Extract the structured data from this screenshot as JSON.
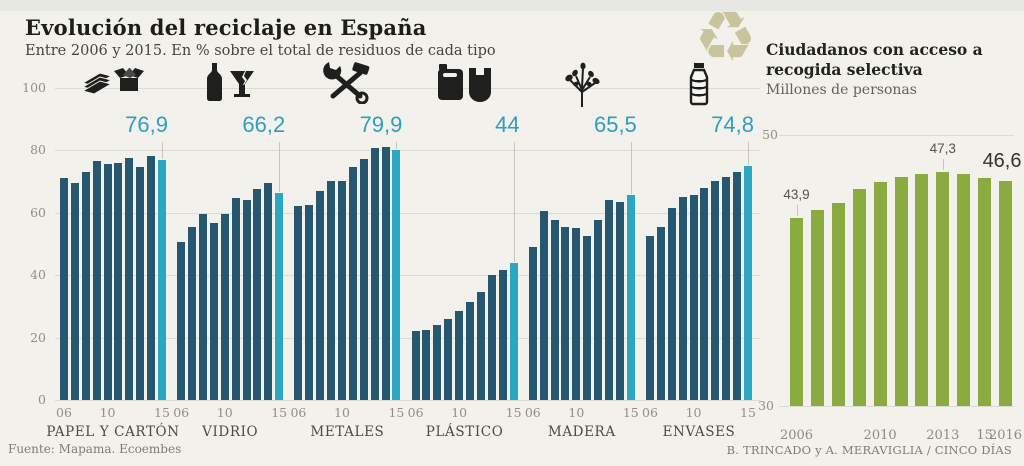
{
  "header": {
    "title": "Evolución del reciclaje en España",
    "subtitle": "Entre 2006 y 2015. En % sobre el total de residuos de cada tipo"
  },
  "right_header": {
    "title": "Ciudadanos con acceso a recogida selectiva",
    "subtitle": "Millones de personas"
  },
  "icons": {
    "recycle_glyph": "♻"
  },
  "palette": {
    "background": "#f2f1ec",
    "bar_blue": "#27566f",
    "bar_teal": "#2ca7c2",
    "label_teal": "#2f9fc0",
    "bar_green": "#8aab40",
    "gridline": "#dbdad3"
  },
  "footer": {
    "source": "Fuente: Mapama. Ecoembes",
    "credit": "B. TRINCADO y A. MERAVIGLIA / CINCO DÍAS"
  },
  "chart_data": [
    {
      "id": "recycling-by-material",
      "type": "bar",
      "title": "Evolución del reciclaje en España",
      "subtitle": "Entre 2006 y 2015. En % sobre el total de residuos de cada tipo",
      "years": [
        "06",
        "07",
        "08",
        "09",
        "10",
        "11",
        "12",
        "13",
        "14",
        "15"
      ],
      "ylim": [
        0,
        100
      ],
      "yticks": [
        0,
        20,
        40,
        60,
        80,
        100
      ],
      "grid": true,
      "highlight_last_bar": true,
      "x_tick_indices": [
        0,
        4,
        9
      ],
      "x_tick_texts": [
        "06",
        "10",
        "15"
      ],
      "groups": [
        {
          "name": "PAPEL Y CARTÓN",
          "icon": "paper-and-box-icon",
          "final_label": "76,9",
          "values": [
            71,
            69.5,
            73,
            76.5,
            75.5,
            76,
            77.5,
            74.5,
            78,
            76.9
          ]
        },
        {
          "name": "VIDRIO",
          "icon": "bottle-and-glass-icon",
          "final_label": "66,2",
          "values": [
            50.5,
            55.5,
            59.5,
            56.5,
            59.5,
            64.5,
            64,
            67.5,
            69.5,
            66.2
          ]
        },
        {
          "name": "METALES",
          "icon": "wrench-and-hammer-icon",
          "final_label": "79,9",
          "values": [
            62,
            62.5,
            67,
            70,
            70,
            74.5,
            77,
            80.5,
            81,
            79.9
          ]
        },
        {
          "name": "PLÁSTICO",
          "icon": "jerrycan-and-bag-icon",
          "final_label": "44",
          "values": [
            22,
            22.5,
            24,
            26,
            28.5,
            31.5,
            34.5,
            40,
            41.5,
            44
          ]
        },
        {
          "name": "MADERA",
          "icon": "tree-icon",
          "final_label": "65,5",
          "values": [
            49,
            60.5,
            57.5,
            55.5,
            55,
            52.5,
            57.5,
            64,
            63.5,
            65.5
          ]
        },
        {
          "name": "ENVASES",
          "icon": "plastic-bottle-icon",
          "final_label": "74,8",
          "values": [
            52.5,
            55.5,
            61.5,
            65,
            65.5,
            68,
            70,
            71.5,
            73,
            74.8
          ]
        }
      ]
    },
    {
      "id": "citizens-with-selective-collection",
      "type": "bar",
      "title": "Ciudadanos con acceso a recogida selectiva",
      "subtitle": "Millones de personas",
      "years": [
        "2006",
        "2007",
        "2008",
        "2009",
        "2010",
        "2011",
        "2012",
        "2013",
        "2014",
        "2015",
        "2016"
      ],
      "values": [
        43.9,
        44.5,
        45,
        46,
        46.5,
        46.9,
        47.1,
        47.3,
        47.1,
        46.8,
        46.6
      ],
      "ylim": [
        30,
        50
      ],
      "yticks": [
        30,
        50
      ],
      "point_labels": [
        {
          "index": 0,
          "text": "43,9",
          "emphasis": false
        },
        {
          "index": 7,
          "text": "47,3",
          "emphasis": false
        },
        {
          "index": 10,
          "text": "46,6",
          "emphasis": true
        }
      ],
      "x_ticks": [
        {
          "index": 0,
          "text": "2006"
        },
        {
          "index": 4,
          "text": "2010"
        },
        {
          "index": 7,
          "text": "2013"
        },
        {
          "index": 9,
          "text": "15"
        },
        {
          "index": 10,
          "text": "2016"
        }
      ]
    }
  ]
}
